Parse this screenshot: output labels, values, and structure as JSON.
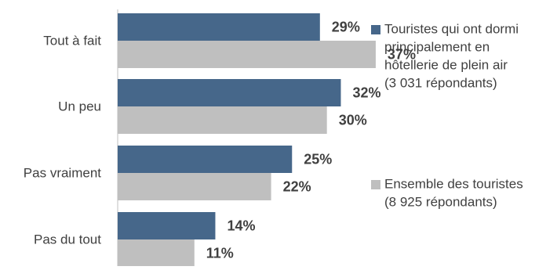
{
  "chart_data": {
    "type": "bar",
    "orientation": "horizontal",
    "categories": [
      "Tout à fait",
      "Un peu",
      "Pas vraiment",
      "Pas du tout"
    ],
    "series": [
      {
        "name": "Touristes qui ont dormi principalement en hôtellerie de plein air (3 031 répondants)",
        "legend_lines": [
          "Touristes qui ont dormi",
          "principalement en",
          "hôtellerie de plein air",
          "(3 031 répondants)"
        ],
        "values": [
          29,
          32,
          25,
          14
        ],
        "labels": [
          "29%",
          "32%",
          "25%",
          "14%"
        ],
        "color": "#46678a"
      },
      {
        "name": "Ensemble des touristes (8 925 répondants)",
        "legend_lines": [
          "Ensemble des touristes",
          "(8 925 répondants)"
        ],
        "values": [
          37,
          30,
          22,
          11
        ],
        "labels": [
          "37%",
          "30%",
          "22%",
          "11%"
        ],
        "color": "#bfbfbf"
      }
    ],
    "unit": "%",
    "xlim": [
      0,
      100
    ],
    "grid": false,
    "legend_position": "right"
  }
}
